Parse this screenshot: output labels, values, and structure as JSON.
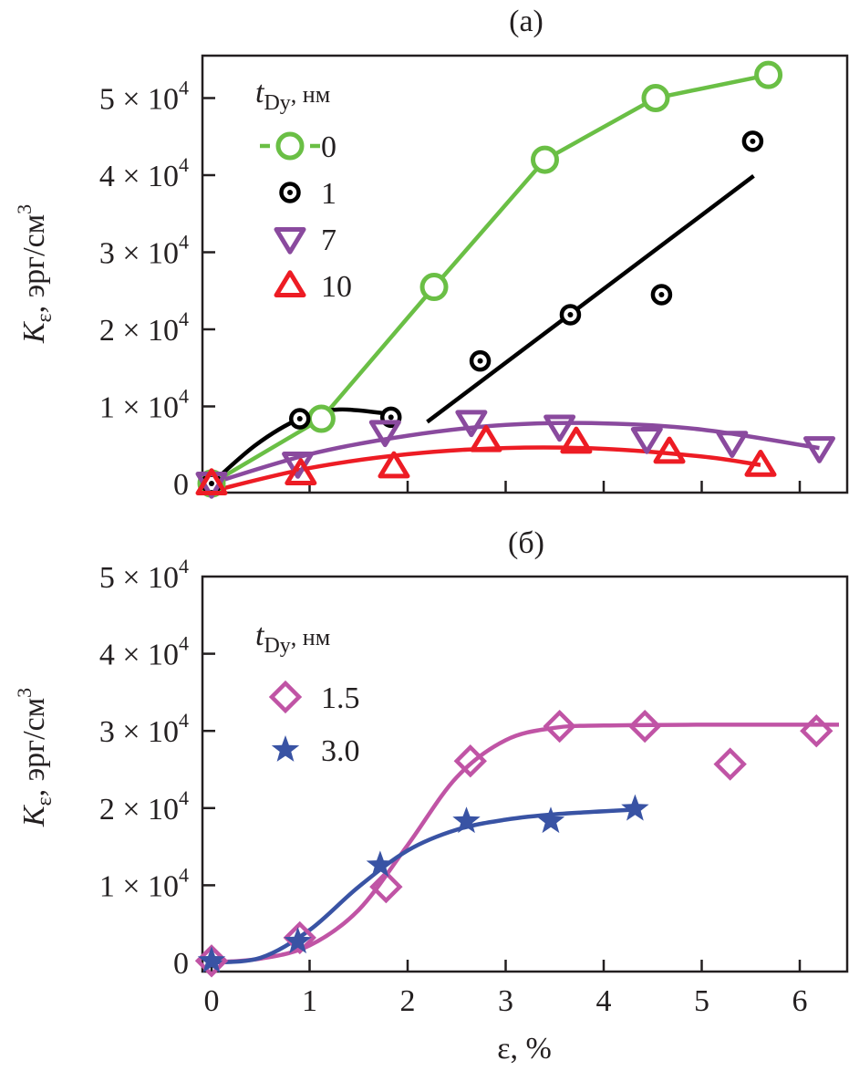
{
  "figure": {
    "x_axis_title": "ε, %",
    "y_axis_title_main": "K",
    "y_axis_title_sub": "ε",
    "y_axis_title_units": ", эрг/см",
    "y_axis_title_exp": "3"
  },
  "chart_data": [
    {
      "type": "scatter",
      "panel_label": "(а)",
      "xlabel": "ε, %",
      "ylabel": "Kε, эрг/см3",
      "xlim": [
        -0.1,
        6.5
      ],
      "ylim": [
        -0.1,
        5.5
      ],
      "y_unit_multiplier": 10000,
      "xticks": [
        0,
        1,
        2,
        3,
        4,
        5,
        6
      ],
      "xtick_labels_visible": false,
      "yticks": [
        0,
        1,
        2,
        3,
        4,
        5
      ],
      "ytick_labels": [
        "0",
        "1 × 10",
        "2 × 10",
        "3 × 10",
        "4 × 10",
        "5 × 10"
      ],
      "ytick_exp": "4",
      "grid": false,
      "legend": {
        "title_main": "t",
        "title_sub": "Dy",
        "title_units": ", нм",
        "placement": "top-left"
      },
      "series": [
        {
          "name": "0",
          "color": "#6abf45",
          "marker": "circle-open",
          "line": "connect",
          "x": [
            0,
            1.12,
            2.27,
            3.4,
            4.53,
            5.68
          ],
          "y": [
            0.0,
            0.84,
            2.55,
            4.2,
            5.0,
            5.3
          ]
        },
        {
          "name": "1",
          "color": "#000000",
          "marker": "circle-dot",
          "x": [
            0,
            0.9,
            1.83,
            2.74,
            3.66,
            4.59,
            5.52
          ],
          "y": [
            0.0,
            0.84,
            0.86,
            1.59,
            2.19,
            2.45,
            4.44
          ],
          "fits": [
            {
              "kind": "curve",
              "x": [
                0,
                0.45,
                0.9,
                1.3,
                1.83
              ],
              "y": [
                0.0,
                0.5,
                0.84,
                0.96,
                0.9
              ]
            },
            {
              "kind": "line",
              "x": [
                2.2,
                5.53
              ],
              "y": [
                0.8,
                3.99
              ]
            }
          ]
        },
        {
          "name": "7",
          "color": "#8a4a9e",
          "marker": "triangle-down-open",
          "line": "smooth",
          "x": [
            0,
            0.88,
            1.77,
            2.65,
            3.55,
            4.44,
            5.31,
            6.2
          ],
          "y": [
            0.0,
            0.26,
            0.67,
            0.8,
            0.74,
            0.58,
            0.53,
            0.46
          ],
          "fit": {
            "x": [
              0,
              1,
              2,
              3,
              4,
              5,
              6.2
            ],
            "y": [
              0.0,
              0.38,
              0.62,
              0.76,
              0.78,
              0.7,
              0.46
            ]
          }
        },
        {
          "name": "10",
          "color": "#ed1c24",
          "marker": "triangle-up-open",
          "line": "smooth",
          "x": [
            0,
            0.91,
            1.86,
            2.8,
            3.72,
            4.67,
            5.6
          ],
          "y": [
            0.0,
            0.13,
            0.22,
            0.56,
            0.54,
            0.41,
            0.24
          ],
          "fit": {
            "x": [
              0,
              1,
              2,
              3,
              4,
              5,
              5.6
            ],
            "y": [
              -0.1,
              0.2,
              0.38,
              0.46,
              0.45,
              0.35,
              0.24
            ]
          }
        }
      ]
    },
    {
      "type": "scatter",
      "panel_label": "(б)",
      "xlabel": "ε, %",
      "ylabel": "Kε, эрг/см3",
      "xlim": [
        -0.1,
        6.5
      ],
      "ylim": [
        -0.1,
        5.0
      ],
      "y_unit_multiplier": 10000,
      "xticks": [
        0,
        1,
        2,
        3,
        4,
        5,
        6
      ],
      "xtick_labels": [
        "0",
        "1",
        "2",
        "3",
        "4",
        "5",
        "6"
      ],
      "yticks": [
        0,
        1,
        2,
        3,
        4,
        5
      ],
      "ytick_labels": [
        "0",
        "1 × 10",
        "2 × 10",
        "3 × 10",
        "4 × 10",
        "5 × 10"
      ],
      "ytick_exp": "4",
      "grid": false,
      "legend": {
        "title_main": "t",
        "title_sub": "Dy",
        "title_units": ", нм",
        "placement": "top-left"
      },
      "series": [
        {
          "name": "1.5",
          "color": "#c054a5",
          "marker": "diamond-open",
          "line": "smooth",
          "x": [
            0,
            0.9,
            1.78,
            2.64,
            3.55,
            4.42,
            5.29,
            6.17
          ],
          "y": [
            0.02,
            0.32,
            0.98,
            2.61,
            3.06,
            3.06,
            2.57,
            3.0
          ],
          "fit": {
            "x": [
              0,
              0.5,
              1.0,
              1.5,
              2.0,
              2.5,
              3.0,
              3.5,
              4.0,
              5.0,
              6.4
            ],
            "y": [
              0.0,
              0.05,
              0.22,
              0.68,
              1.52,
              2.4,
              2.88,
              3.04,
              3.07,
              3.08,
              3.08
            ]
          }
        },
        {
          "name": "3.0",
          "color": "#3953a4",
          "marker": "star-filled",
          "line": "smooth",
          "x": [
            0,
            0.88,
            1.72,
            2.6,
            3.46,
            4.32
          ],
          "y": [
            0.02,
            0.27,
            1.26,
            1.83,
            1.83,
            1.99
          ],
          "fit": {
            "x": [
              0,
              0.5,
              1.0,
              1.5,
              2.0,
              2.5,
              3.0,
              3.5,
              4.32
            ],
            "y": [
              0.0,
              0.06,
              0.42,
              0.98,
              1.45,
              1.72,
              1.85,
              1.92,
              1.98
            ]
          }
        }
      ]
    }
  ]
}
